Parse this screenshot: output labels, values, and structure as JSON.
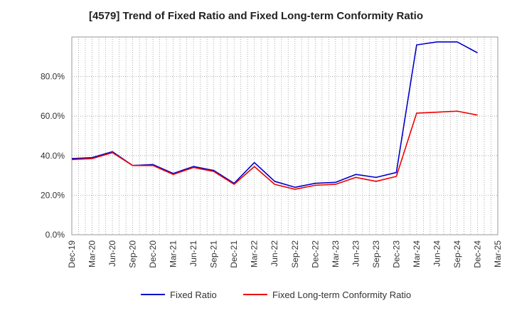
{
  "chart_data": {
    "type": "line",
    "title": "[4579]  Trend of Fixed Ratio and Fixed Long-term Conformity Ratio",
    "xlabel": "",
    "ylabel": "",
    "categories": [
      "Dec-19",
      "Mar-20",
      "Jun-20",
      "Sep-20",
      "Dec-20",
      "Mar-21",
      "Jun-21",
      "Sep-21",
      "Dec-21",
      "Mar-22",
      "Jun-22",
      "Sep-22",
      "Dec-22",
      "Mar-23",
      "Jun-23",
      "Sep-23",
      "Dec-23",
      "Mar-24",
      "Jun-24",
      "Sep-24",
      "Dec-24",
      "Mar-25"
    ],
    "ylim": [
      0,
      100
    ],
    "yticks": [
      0,
      20,
      40,
      60,
      80
    ],
    "ytick_labels": [
      "0.0%",
      "20.0%",
      "40.0%",
      "60.0%",
      "80.0%"
    ],
    "grid": true,
    "legend_position": "bottom",
    "series": [
      {
        "name": "Fixed Ratio",
        "color": "#0000cc",
        "values": [
          38.5,
          39.0,
          42.0,
          35.0,
          35.5,
          31.0,
          34.5,
          32.5,
          26.0,
          36.5,
          27.0,
          24.0,
          26.0,
          26.5,
          30.5,
          29.0,
          31.5,
          96.0,
          97.5,
          97.5,
          92.0,
          null
        ]
      },
      {
        "name": "Fixed Long-term Conformity Ratio",
        "color": "#ee0000",
        "values": [
          38.0,
          38.5,
          41.5,
          35.0,
          35.0,
          30.5,
          34.0,
          32.0,
          25.5,
          34.5,
          25.5,
          23.0,
          25.0,
          25.5,
          29.0,
          27.0,
          29.5,
          61.5,
          62.0,
          62.5,
          60.5,
          null
        ]
      }
    ]
  }
}
